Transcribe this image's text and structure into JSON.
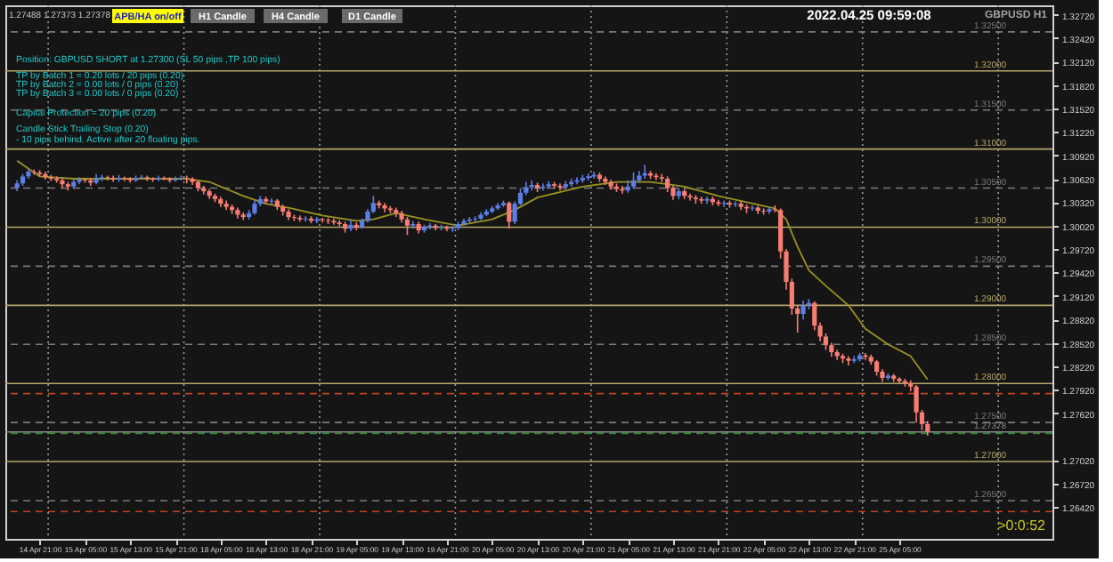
{
  "chart_data": {
    "type": "candlestick",
    "categories": [
      null,
      null,
      null,
      null,
      "14 Apr 21:00",
      null,
      null,
      null,
      null,
      null,
      null,
      null,
      "15 Apr 05:00",
      null,
      null,
      null,
      null,
      null,
      null,
      null,
      "15 Apr 13:00",
      null,
      null,
      null,
      null,
      null,
      null,
      null,
      "15 Apr 21:00",
      null,
      null,
      null,
      null,
      null,
      null,
      null,
      "18 Apr 05:00",
      null,
      null,
      null,
      null,
      null,
      null,
      null,
      "18 Apr 13:00",
      null,
      null,
      null,
      null,
      null,
      null,
      null,
      "18 Apr 21:00",
      null,
      null,
      null,
      null,
      null,
      null,
      null,
      "19 Apr 05:00",
      null,
      null,
      null,
      null,
      null,
      null,
      null,
      "19 Apr 13:00",
      null,
      null,
      null,
      null,
      null,
      null,
      null,
      "19 Apr 21:00",
      null,
      null,
      null,
      null,
      null,
      null,
      null,
      "20 Apr 05:00",
      null,
      null,
      null,
      null,
      null,
      null,
      null,
      "20 Apr 13:00",
      null,
      null,
      null,
      null,
      null,
      null,
      null,
      "20 Apr 21:00",
      null,
      null,
      null,
      null,
      null,
      null,
      null,
      "21 Apr 05:00",
      null,
      null,
      null,
      null,
      null,
      null,
      null,
      "21 Apr 13:00",
      null,
      null,
      null,
      null,
      null,
      null,
      null,
      "21 Apr 21:00",
      null,
      null,
      null,
      null,
      null,
      null,
      null,
      "22 Apr 05:00",
      null,
      null,
      null,
      null,
      null,
      null,
      null,
      "22 Apr 13:00",
      null,
      null,
      null,
      null,
      null,
      null,
      null,
      "22 Apr 21:00",
      null,
      null,
      null,
      null,
      null,
      null,
      null,
      "25 Apr 05:00",
      null,
      null,
      null,
      null,
      null,
      null,
      null,
      null,
      null,
      null,
      null,
      null,
      null,
      null,
      null,
      null,
      null,
      null,
      null,
      null,
      null,
      null,
      null,
      null,
      null
    ],
    "ohlc": [
      [
        1.305,
        1.306,
        1.3046,
        1.3056
      ],
      [
        1.3056,
        1.3068,
        1.3053,
        1.3065
      ],
      [
        1.3065,
        1.3074,
        1.3062,
        1.3071
      ],
      [
        1.3071,
        1.3074,
        1.3067,
        1.307
      ],
      [
        1.307,
        1.3073,
        1.3065,
        1.3068
      ],
      [
        1.3068,
        1.3071,
        1.3061,
        1.3064
      ],
      [
        1.3064,
        1.3067,
        1.3059,
        1.3062
      ],
      [
        1.3062,
        1.3065,
        1.3057,
        1.306
      ],
      [
        1.306,
        1.3063,
        1.305,
        1.3055
      ],
      [
        1.3055,
        1.3058,
        1.3047,
        1.3052
      ],
      [
        1.3052,
        1.3061,
        1.3049,
        1.3058
      ],
      [
        1.3058,
        1.3064,
        1.3055,
        1.3061
      ],
      [
        1.3061,
        1.3063,
        1.3057,
        1.306
      ],
      [
        1.306,
        1.3063,
        1.3053,
        1.3057
      ],
      [
        1.3057,
        1.3068,
        1.3055,
        1.3062
      ],
      [
        1.3062,
        1.3067,
        1.3059,
        1.3064
      ],
      [
        1.3064,
        1.3066,
        1.306,
        1.3063
      ],
      [
        1.3063,
        1.3066,
        1.3058,
        1.3061
      ],
      [
        1.3061,
        1.3067,
        1.3058,
        1.3063
      ],
      [
        1.3063,
        1.3065,
        1.3059,
        1.3062
      ],
      [
        1.3062,
        1.3064,
        1.3057,
        1.306
      ],
      [
        1.306,
        1.3066,
        1.3058,
        1.3063
      ],
      [
        1.3063,
        1.3067,
        1.3061,
        1.3064
      ],
      [
        1.3064,
        1.3066,
        1.3059,
        1.3062
      ],
      [
        1.3062,
        1.3064,
        1.3058,
        1.3061
      ],
      [
        1.3061,
        1.3066,
        1.3059,
        1.3063
      ],
      [
        1.3063,
        1.3065,
        1.306,
        1.3062
      ],
      [
        1.3062,
        1.3064,
        1.3057,
        1.306
      ],
      [
        1.306,
        1.3065,
        1.3058,
        1.3062
      ],
      [
        1.3062,
        1.3066,
        1.306,
        1.3063
      ],
      [
        1.3063,
        1.3066,
        1.3056,
        1.3062
      ],
      [
        1.3062,
        1.3064,
        1.3054,
        1.3058
      ],
      [
        1.3058,
        1.306,
        1.3046,
        1.305
      ],
      [
        1.305,
        1.3053,
        1.3042,
        1.3046
      ],
      [
        1.3046,
        1.3049,
        1.3036,
        1.304
      ],
      [
        1.304,
        1.3043,
        1.3032,
        1.3036
      ],
      [
        1.3036,
        1.3039,
        1.3026,
        1.303
      ],
      [
        1.303,
        1.3034,
        1.3022,
        1.3026
      ],
      [
        1.3026,
        1.3029,
        1.3017,
        1.3022
      ],
      [
        1.3022,
        1.3025,
        1.3011,
        1.3016
      ],
      [
        1.3016,
        1.3019,
        1.3009,
        1.3013
      ],
      [
        1.3013,
        1.3022,
        1.301,
        1.3018
      ],
      [
        1.3018,
        1.3034,
        1.3016,
        1.303
      ],
      [
        1.303,
        1.304,
        1.3027,
        1.3036
      ],
      [
        1.3036,
        1.3039,
        1.303,
        1.3033
      ],
      [
        1.3033,
        1.3037,
        1.3029,
        1.3034
      ],
      [
        1.3034,
        1.3036,
        1.3022,
        1.3026
      ],
      [
        1.3026,
        1.3029,
        1.3015,
        1.302
      ],
      [
        1.302,
        1.3023,
        1.3009,
        1.3013
      ],
      [
        1.3013,
        1.3016,
        1.3008,
        1.3012
      ],
      [
        1.3012,
        1.3015,
        1.3007,
        1.301
      ],
      [
        1.301,
        1.3014,
        1.3007,
        1.3011
      ],
      [
        1.3011,
        1.3014,
        1.3005,
        1.3008
      ],
      [
        1.3008,
        1.3013,
        1.3005,
        1.301
      ],
      [
        1.301,
        1.3012,
        1.3006,
        1.3009
      ],
      [
        1.3009,
        1.3012,
        1.3004,
        1.3008
      ],
      [
        1.3008,
        1.3011,
        1.3003,
        1.3006
      ],
      [
        1.3006,
        1.3009,
        1.3001,
        1.3004
      ],
      [
        1.3004,
        1.3007,
        1.2993,
        1.2998
      ],
      [
        1.2998,
        1.301,
        1.2995,
        1.3003
      ],
      [
        1.3003,
        1.3006,
        1.2996,
        1.3
      ],
      [
        1.3,
        1.3011,
        1.2998,
        1.3008
      ],
      [
        1.3008,
        1.3023,
        1.3006,
        1.302
      ],
      [
        1.302,
        1.304,
        1.3018,
        1.3031
      ],
      [
        1.3031,
        1.3034,
        1.3024,
        1.3028
      ],
      [
        1.3028,
        1.3031,
        1.3019,
        1.3024
      ],
      [
        1.3024,
        1.3027,
        1.3018,
        1.3022
      ],
      [
        1.3022,
        1.3025,
        1.3013,
        1.3018
      ],
      [
        1.3018,
        1.3021,
        1.3006,
        1.301
      ],
      [
        1.301,
        1.3013,
        1.299,
        1.3002
      ],
      [
        1.3002,
        1.3008,
        1.2998,
        1.3004
      ],
      [
        1.3004,
        1.3007,
        1.2992,
        1.2996
      ],
      [
        1.2996,
        1.3003,
        1.2993,
        1.3
      ],
      [
        1.3,
        1.3005,
        1.2997,
        1.3002
      ],
      [
        1.3002,
        1.3004,
        1.2996,
        1.2999
      ],
      [
        1.2999,
        1.3003,
        1.2996,
        1.3
      ],
      [
        1.3,
        1.3002,
        1.2995,
        1.2998
      ],
      [
        1.2998,
        1.3001,
        1.2994,
        1.2999
      ],
      [
        1.2999,
        1.3007,
        1.2996,
        1.3004
      ],
      [
        1.3004,
        1.3011,
        1.3002,
        1.3008
      ],
      [
        1.3008,
        1.3013,
        1.3006,
        1.301
      ],
      [
        1.301,
        1.3014,
        1.3007,
        1.3011
      ],
      [
        1.3011,
        1.3019,
        1.3009,
        1.3016
      ],
      [
        1.3016,
        1.3023,
        1.3014,
        1.302
      ],
      [
        1.302,
        1.3027,
        1.3018,
        1.3024
      ],
      [
        1.3024,
        1.3031,
        1.3022,
        1.3028
      ],
      [
        1.3028,
        1.3034,
        1.3026,
        1.3031
      ],
      [
        1.3031,
        1.3033,
        1.2998,
        1.3007
      ],
      [
        1.3007,
        1.3033,
        1.3004,
        1.303
      ],
      [
        1.303,
        1.305,
        1.3028,
        1.3044
      ],
      [
        1.3044,
        1.3058,
        1.3041,
        1.3051
      ],
      [
        1.3051,
        1.306,
        1.3047,
        1.3054
      ],
      [
        1.3054,
        1.3057,
        1.3045,
        1.305
      ],
      [
        1.305,
        1.3056,
        1.3047,
        1.3052
      ],
      [
        1.3052,
        1.3059,
        1.3049,
        1.3055
      ],
      [
        1.3055,
        1.3058,
        1.3049,
        1.3053
      ],
      [
        1.3053,
        1.3056,
        1.3047,
        1.3051
      ],
      [
        1.3051,
        1.3059,
        1.3048,
        1.3055
      ],
      [
        1.3055,
        1.3062,
        1.3052,
        1.3058
      ],
      [
        1.3058,
        1.3064,
        1.3055,
        1.306
      ],
      [
        1.306,
        1.3067,
        1.3057,
        1.3063
      ],
      [
        1.3063,
        1.3069,
        1.306,
        1.3065
      ],
      [
        1.3065,
        1.3071,
        1.3062,
        1.3067
      ],
      [
        1.3067,
        1.307,
        1.3058,
        1.3062
      ],
      [
        1.3062,
        1.3065,
        1.3054,
        1.3058
      ],
      [
        1.3058,
        1.3061,
        1.3048,
        1.3052
      ],
      [
        1.3052,
        1.3056,
        1.3045,
        1.3049
      ],
      [
        1.3049,
        1.3053,
        1.3043,
        1.3047
      ],
      [
        1.3047,
        1.306,
        1.3044,
        1.3052
      ],
      [
        1.3052,
        1.307,
        1.3049,
        1.306
      ],
      [
        1.306,
        1.3072,
        1.3057,
        1.3066
      ],
      [
        1.3066,
        1.308,
        1.3062,
        1.3069
      ],
      [
        1.3069,
        1.3072,
        1.3062,
        1.3066
      ],
      [
        1.3066,
        1.3069,
        1.306,
        1.3064
      ],
      [
        1.3064,
        1.3068,
        1.3058,
        1.3062
      ],
      [
        1.3062,
        1.3065,
        1.3045,
        1.305
      ],
      [
        1.305,
        1.3053,
        1.3035,
        1.304
      ],
      [
        1.304,
        1.305,
        1.3036,
        1.3046
      ],
      [
        1.3046,
        1.3049,
        1.3036,
        1.304
      ],
      [
        1.304,
        1.3043,
        1.3034,
        1.3038
      ],
      [
        1.3038,
        1.3041,
        1.303,
        1.3036
      ],
      [
        1.3036,
        1.3039,
        1.303,
        1.3034
      ],
      [
        1.3034,
        1.3039,
        1.303,
        1.3036
      ],
      [
        1.3036,
        1.3039,
        1.3028,
        1.3032
      ],
      [
        1.3032,
        1.3035,
        1.3027,
        1.303
      ],
      [
        1.303,
        1.3034,
        1.3026,
        1.3031
      ],
      [
        1.3031,
        1.3034,
        1.3025,
        1.3029
      ],
      [
        1.3029,
        1.3033,
        1.3026,
        1.303
      ],
      [
        1.303,
        1.3033,
        1.3022,
        1.3026
      ],
      [
        1.3026,
        1.3029,
        1.3018,
        1.3024
      ],
      [
        1.3024,
        1.3028,
        1.3021,
        1.3025
      ],
      [
        1.3025,
        1.3027,
        1.3017,
        1.3021
      ],
      [
        1.3021,
        1.3024,
        1.3016,
        1.302
      ],
      [
        1.302,
        1.3026,
        1.3017,
        1.3023
      ],
      [
        1.3023,
        1.3028,
        1.3019,
        1.3022
      ],
      [
        1.3022,
        1.3024,
        1.296,
        1.2969
      ],
      [
        1.2969,
        1.2972,
        1.292,
        1.293
      ],
      [
        1.293,
        1.2934,
        1.2888,
        1.2896
      ],
      [
        1.2896,
        1.29,
        1.2865,
        1.2889
      ],
      [
        1.2889,
        1.2906,
        1.2882,
        1.29
      ],
      [
        1.29,
        1.2908,
        1.2895,
        1.2903
      ],
      [
        1.2903,
        1.2905,
        1.2868,
        1.2874
      ],
      [
        1.2874,
        1.2878,
        1.2854,
        1.286
      ],
      [
        1.286,
        1.2864,
        1.2843,
        1.2849
      ],
      [
        1.2849,
        1.2852,
        1.2834,
        1.284
      ],
      [
        1.284,
        1.2843,
        1.283,
        1.2835
      ],
      [
        1.2835,
        1.2838,
        1.2826,
        1.2832
      ],
      [
        1.2832,
        1.2835,
        1.2823,
        1.2829
      ],
      [
        1.2829,
        1.2835,
        1.2826,
        1.2831
      ],
      [
        1.2831,
        1.2839,
        1.2828,
        1.2836
      ],
      [
        1.2836,
        1.2839,
        1.283,
        1.2834
      ],
      [
        1.2834,
        1.2837,
        1.2824,
        1.2828
      ],
      [
        1.2828,
        1.283,
        1.281,
        1.2815
      ],
      [
        1.2815,
        1.2818,
        1.2802,
        1.2807
      ],
      [
        1.2807,
        1.2813,
        1.2804,
        1.281
      ],
      [
        1.281,
        1.2812,
        1.2802,
        1.2806
      ],
      [
        1.2806,
        1.2808,
        1.2799,
        1.2803
      ],
      [
        1.2803,
        1.2806,
        1.2796,
        1.28
      ],
      [
        1.28,
        1.2804,
        1.279,
        1.2796
      ],
      [
        1.2796,
        1.2798,
        1.275,
        1.2763
      ],
      [
        1.2763,
        1.2766,
        1.274,
        1.2748
      ],
      [
        1.2748,
        1.2752,
        1.2733,
        1.2738
      ],
      null,
      null,
      null,
      null,
      null,
      null,
      null,
      null,
      null,
      null,
      null,
      null,
      null,
      null,
      null,
      null,
      null,
      null,
      null,
      null
    ],
    "colors": [
      "#5b7fe6",
      "#5b7fe6",
      "#5b7fe6",
      "#f77d72",
      "#f77d72",
      "#f77d72",
      "#f77d72",
      "#f77d72",
      "#f77d72",
      "#f77d72",
      "#5b7fe6",
      "#5b7fe6",
      "#f77d72",
      "#f77d72",
      "#5b7fe6",
      "#5b7fe6",
      "#f77d72",
      "#f77d72",
      "#5b7fe6",
      "#f77d72",
      "#f77d72",
      "#5b7fe6",
      "#5b7fe6",
      "#f77d72",
      "#f77d72",
      "#5b7fe6",
      "#f77d72",
      "#f77d72",
      "#5b7fe6",
      "#5b7fe6",
      "#f77d72",
      "#f77d72",
      "#f77d72",
      "#f77d72",
      "#f77d72",
      "#f77d72",
      "#f77d72",
      "#f77d72",
      "#f77d72",
      "#f77d72",
      "#f77d72",
      "#5b7fe6",
      "#5b7fe6",
      "#5b7fe6",
      "#f77d72",
      "#5b7fe6",
      "#f77d72",
      "#f77d72",
      "#f77d72",
      "#f77d72",
      "#f77d72",
      "#5b7fe6",
      "#f77d72",
      "#5b7fe6",
      "#f77d72",
      "#f77d72",
      "#f77d72",
      "#f77d72",
      "#f77d72",
      "#5b7fe6",
      "#f77d72",
      "#5b7fe6",
      "#5b7fe6",
      "#5b7fe6",
      "#f77d72",
      "#f77d72",
      "#f77d72",
      "#f77d72",
      "#f77d72",
      "#f77d72",
      "#5b7fe6",
      "#f77d72",
      "#5b7fe6",
      "#5b7fe6",
      "#f77d72",
      "#5b7fe6",
      "#f77d72",
      "#5b7fe6",
      "#5b7fe6",
      "#5b7fe6",
      "#5b7fe6",
      "#5b7fe6",
      "#5b7fe6",
      "#5b7fe6",
      "#5b7fe6",
      "#5b7fe6",
      "#5b7fe6",
      "#f77d72",
      "#5b7fe6",
      "#5b7fe6",
      "#5b7fe6",
      "#5b7fe6",
      "#f77d72",
      "#5b7fe6",
      "#5b7fe6",
      "#f77d72",
      "#f77d72",
      "#5b7fe6",
      "#5b7fe6",
      "#5b7fe6",
      "#5b7fe6",
      "#5b7fe6",
      "#5b7fe6",
      "#f77d72",
      "#f77d72",
      "#f77d72",
      "#f77d72",
      "#f77d72",
      "#5b7fe6",
      "#5b7fe6",
      "#5b7fe6",
      "#5b7fe6",
      "#f77d72",
      "#f77d72",
      "#f77d72",
      "#f77d72",
      "#f77d72",
      "#5b7fe6",
      "#f77d72",
      "#f77d72",
      "#f77d72",
      "#f77d72",
      "#5b7fe6",
      "#f77d72",
      "#f77d72",
      "#5b7fe6",
      "#f77d72",
      "#5b7fe6",
      "#f77d72",
      "#f77d72",
      "#5b7fe6",
      "#f77d72",
      "#f77d72",
      "#5b7fe6",
      "#f77d72",
      "#f77d72",
      "#f77d72",
      "#f77d72",
      "#f77d72",
      "#5b7fe6",
      "#5b7fe6",
      "#f77d72",
      "#f77d72",
      "#f77d72",
      "#f77d72",
      "#f77d72",
      "#f77d72",
      "#f77d72",
      "#5b7fe6",
      "#5b7fe6",
      "#f77d72",
      "#f77d72",
      "#f77d72",
      "#f77d72",
      "#5b7fe6",
      "#f77d72",
      "#f77d72",
      "#f77d72",
      "#f77d72",
      "#f77d72",
      "#f77d72",
      "#f77d72",
      null,
      null,
      null,
      null,
      null,
      null,
      null,
      null,
      null,
      null,
      null,
      null,
      null,
      null,
      null,
      null,
      null,
      null,
      null,
      null
    ],
    "series": [
      {
        "type": "line",
        "color": "#9a9420",
        "values": [
          1.3085,
          null,
          null,
          null,
          1.3065,
          null,
          null,
          null,
          null,
          null,
          1.3062,
          null,
          null,
          null,
          null,
          null,
          null,
          null,
          null,
          null,
          null,
          null,
          null,
          null,
          null,
          null,
          null,
          null,
          null,
          null,
          1.3062,
          null,
          null,
          null,
          1.3058,
          null,
          null,
          null,
          null,
          null,
          1.304,
          null,
          null,
          null,
          1.303,
          null,
          null,
          null,
          1.3025,
          null,
          null,
          null,
          null,
          null,
          1.3015,
          null,
          null,
          null,
          null,
          null,
          1.3008,
          null,
          null,
          1.301,
          null,
          null,
          null,
          1.3018,
          null,
          null,
          null,
          null,
          1.301,
          null,
          null,
          null,
          null,
          null,
          1.3002,
          null,
          null,
          null,
          null,
          null,
          1.301,
          null,
          null,
          null,
          1.3022,
          null,
          null,
          null,
          1.3038,
          null,
          null,
          null,
          null,
          null,
          null,
          null,
          1.3052,
          null,
          null,
          null,
          null,
          null,
          1.3058,
          null,
          null,
          null,
          null,
          null,
          1.3058,
          null,
          null,
          null,
          null,
          null,
          1.3052,
          null,
          null,
          null,
          null,
          null,
          1.304,
          null,
          null,
          null,
          null,
          null,
          null,
          null,
          null,
          null,
          1.3024,
          null,
          1.301,
          null,
          1.2975,
          null,
          1.2945,
          null,
          null,
          1.2925,
          null,
          null,
          null,
          1.29,
          null,
          null,
          1.287,
          null,
          null,
          null,
          1.285,
          null,
          null,
          null,
          1.2835,
          null,
          null,
          1.2805,
          null,
          null,
          null,
          null,
          null,
          null,
          null,
          null,
          null,
          null,
          null,
          null,
          null,
          null,
          null,
          null,
          null,
          null,
          null,
          null
        ]
      }
    ],
    "ylim": [
      1.2601,
      1.3284
    ],
    "yticks": [
      {
        "value": 1.3272,
        "label": "1.32720"
      },
      {
        "value": 1.3242,
        "label": "1.32420"
      },
      {
        "value": 1.3212,
        "label": "1.32120"
      },
      {
        "value": 1.3182,
        "label": "1.31820"
      },
      {
        "value": 1.3152,
        "label": "1.31520"
      },
      {
        "value": 1.3122,
        "label": "1.31220"
      },
      {
        "value": 1.3092,
        "label": "1.30920"
      },
      {
        "value": 1.3062,
        "label": "1.30620"
      },
      {
        "value": 1.3032,
        "label": "1.30320"
      },
      {
        "value": 1.3002,
        "label": "1.30020"
      },
      {
        "value": 1.2972,
        "label": "1.29720"
      },
      {
        "value": 1.2942,
        "label": "1.29420"
      },
      {
        "value": 1.2912,
        "label": "1.29120"
      },
      {
        "value": 1.2882,
        "label": "1.28820"
      },
      {
        "value": 1.2852,
        "label": "1.28520"
      },
      {
        "value": 1.2822,
        "label": "1.28220"
      },
      {
        "value": 1.2792,
        "label": "1.27920"
      },
      {
        "value": 1.2762,
        "label": "1.27620"
      },
      {
        "value": 1.2702,
        "label": "1.27020"
      },
      {
        "value": 1.2672,
        "label": "1.26720"
      },
      {
        "value": 1.2642,
        "label": "1.26420"
      }
    ],
    "ref_lines": [
      {
        "axis": "y",
        "value": 1.325,
        "label": "1.32500",
        "color": "#7a7a7a",
        "line_style": "dashed"
      },
      {
        "axis": "y",
        "value": 1.32,
        "label": "1.32000",
        "color": "#b5a66a",
        "line_style": "solid"
      },
      {
        "axis": "y",
        "value": 1.315,
        "label": "1.31500",
        "color": "#7a7a7a",
        "line_style": "dashed"
      },
      {
        "axis": "y",
        "value": 1.31,
        "label": "1.31000",
        "color": "#b5a66a",
        "line_style": "solid"
      },
      {
        "axis": "y",
        "value": 1.305,
        "label": "1.30500",
        "color": "#7a7a7a",
        "line_style": "dashed"
      },
      {
        "axis": "y",
        "value": 1.3,
        "label": "1.30000",
        "color": "#b5a66a",
        "line_style": "solid"
      },
      {
        "axis": "y",
        "value": 1.295,
        "label": "1.29500",
        "color": "#7a7a7a",
        "line_style": "dashed"
      },
      {
        "axis": "y",
        "value": 1.29,
        "label": "1.29000",
        "color": "#b5a66a",
        "line_style": "solid"
      },
      {
        "axis": "y",
        "value": 1.285,
        "label": "1.28500",
        "color": "#7a7a7a",
        "line_style": "dashed"
      },
      {
        "axis": "y",
        "value": 1.28,
        "label": "1.28000",
        "color": "#b5a66a",
        "line_style": "solid"
      },
      {
        "axis": "y",
        "value": 1.275,
        "label": "1.27500",
        "color": "#7a7a7a",
        "line_style": "dashed"
      },
      {
        "axis": "y",
        "value": 1.27,
        "label": "1.27000",
        "color": "#b5a66a",
        "line_style": "solid"
      },
      {
        "axis": "y",
        "value": 1.265,
        "label": "1.26500",
        "color": "#7a7a7a",
        "line_style": "dashed"
      },
      {
        "axis": "y",
        "value": 1.2787,
        "color": "#c0441c",
        "line_style": "dashed"
      },
      {
        "axis": "y",
        "value": 1.2636,
        "color": "#c0441c",
        "line_style": "dashed"
      },
      {
        "axis": "y",
        "value": 1.2736,
        "color": "#2e8b2e",
        "line_style": "dashed"
      },
      {
        "axis": "y",
        "value": 1.27378,
        "label": "1.27378",
        "color": "#8c8c8c",
        "line_style": "solid"
      }
    ],
    "annotations": [
      "1.27488 1.27373 1.27378",
      "APB/HA on/off",
      "H1 Candle",
      "H4 Candle",
      "D1 Candle",
      "Position: GBPUSD SHORT at 1.27300 (SL 50 pips ,TP 100 pips)",
      "TP by Batch 1 = 0.20 lots / 20 pips (0.20)",
      "TP by Batch 2 = 0.00 lots / 0 pips (0.20)",
      "TP by Batch 3 = 0.00 lots / 0 pips (0.20)",
      "Capital Protection = 20 pips (0.20)",
      "Candle Stick Trailing Stop (0.20)",
      " - 10 pips behind. Active after 20 floating pips.",
      "2022.04.25 09:59:08",
      "GBPUSD H1",
      ">0:0:52"
    ]
  }
}
